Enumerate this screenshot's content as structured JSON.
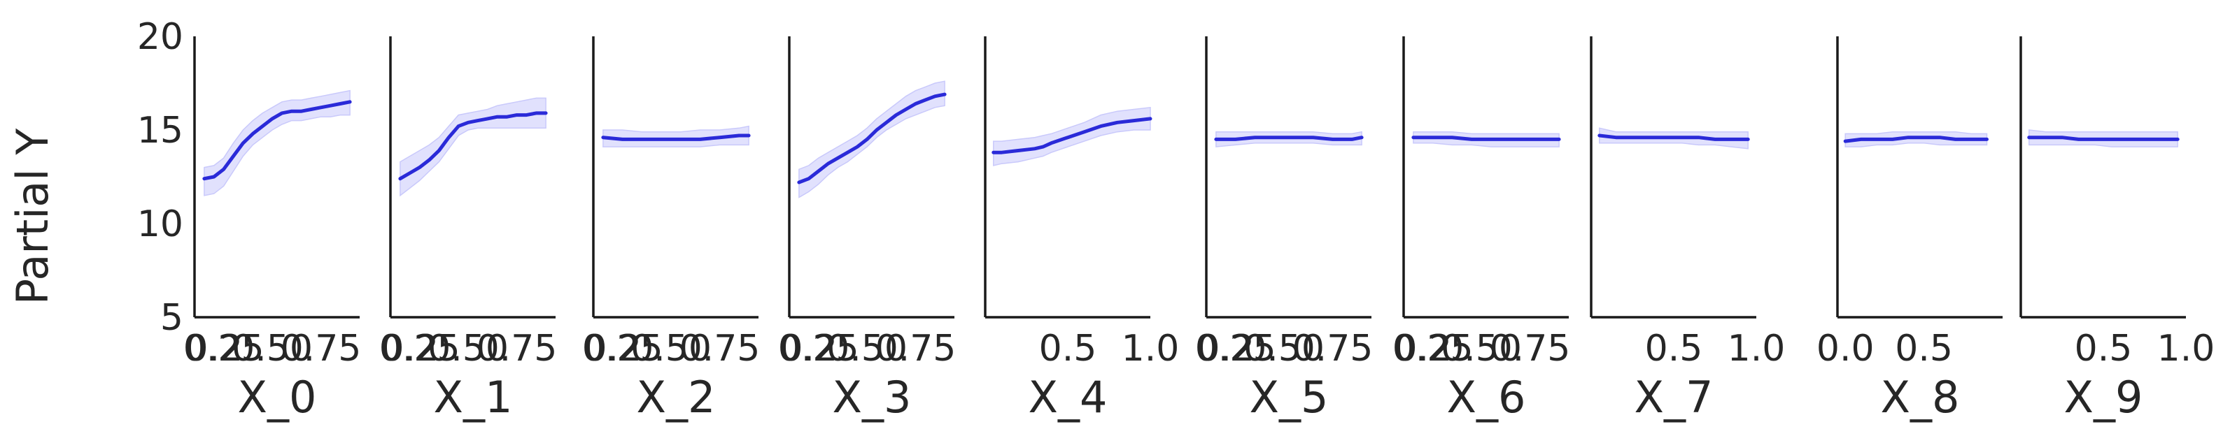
{
  "chart_data": {
    "type": "line",
    "ylabel": "Partial Y",
    "ylim": [
      5,
      20
    ],
    "yticks": [
      5,
      10,
      15,
      20
    ],
    "line_color": "#2a2ad8",
    "band_color": "#c9c9fb",
    "grid": false,
    "legend": "none",
    "panels": [
      {
        "xlabel": "X_0",
        "xlim": [
          0.1,
          0.95
        ],
        "xticks": [
          "0.25",
          "0.50",
          "0.75"
        ],
        "tick_values": [
          0.25,
          0.5,
          0.75
        ],
        "tick_min_label": "0.2",
        "x": [
          0.15,
          0.2,
          0.25,
          0.3,
          0.35,
          0.4,
          0.45,
          0.5,
          0.55,
          0.6,
          0.65,
          0.7,
          0.75,
          0.8,
          0.85,
          0.9
        ],
        "y": [
          12.4,
          12.5,
          12.9,
          13.6,
          14.3,
          14.8,
          15.2,
          15.6,
          15.9,
          16.0,
          16.0,
          16.1,
          16.2,
          16.3,
          16.4,
          16.5
        ],
        "lower": [
          11.5,
          11.6,
          12.0,
          12.8,
          13.6,
          14.2,
          14.6,
          15.0,
          15.3,
          15.5,
          15.5,
          15.6,
          15.7,
          15.7,
          15.8,
          15.8
        ],
        "upper": [
          13.0,
          13.1,
          13.5,
          14.3,
          15.0,
          15.5,
          15.9,
          16.2,
          16.5,
          16.6,
          16.6,
          16.7,
          16.8,
          16.9,
          17.0,
          17.1
        ]
      },
      {
        "xlabel": "X_1",
        "xlim": [
          0.1,
          0.95
        ],
        "xticks": [
          "0.25",
          "0.50",
          "0.75"
        ],
        "tick_values": [
          0.25,
          0.5,
          0.75
        ],
        "tick_min_label": "0.2",
        "x": [
          0.15,
          0.2,
          0.25,
          0.3,
          0.35,
          0.4,
          0.45,
          0.5,
          0.55,
          0.6,
          0.65,
          0.7,
          0.75,
          0.8,
          0.85,
          0.9
        ],
        "y": [
          12.4,
          12.7,
          13.0,
          13.4,
          13.9,
          14.6,
          15.2,
          15.4,
          15.5,
          15.6,
          15.7,
          15.7,
          15.8,
          15.8,
          15.9,
          15.9
        ],
        "lower": [
          11.5,
          11.9,
          12.3,
          12.8,
          13.3,
          14.0,
          14.7,
          15.0,
          15.1,
          15.1,
          15.1,
          15.1,
          15.1,
          15.1,
          15.1,
          15.1
        ],
        "upper": [
          13.3,
          13.6,
          13.9,
          14.2,
          14.6,
          15.2,
          15.8,
          15.9,
          16.0,
          16.1,
          16.3,
          16.4,
          16.5,
          16.6,
          16.7,
          16.7
        ]
      },
      {
        "xlabel": "X_2",
        "xlim": [
          0.1,
          0.95
        ],
        "xticks": [
          "0.25",
          "0.50",
          "0.75"
        ],
        "tick_values": [
          0.25,
          0.5,
          0.75
        ],
        "tick_min_label": "0.2",
        "x": [
          0.15,
          0.25,
          0.35,
          0.45,
          0.55,
          0.65,
          0.75,
          0.85,
          0.9
        ],
        "y": [
          14.6,
          14.5,
          14.5,
          14.5,
          14.5,
          14.5,
          14.6,
          14.7,
          14.7
        ],
        "lower": [
          14.1,
          14.1,
          14.1,
          14.1,
          14.1,
          14.1,
          14.2,
          14.2,
          14.2
        ],
        "upper": [
          15.0,
          15.0,
          14.9,
          14.9,
          14.9,
          15.0,
          15.0,
          15.1,
          15.2
        ]
      },
      {
        "xlabel": "X_3",
        "xlim": [
          0.1,
          0.95
        ],
        "xticks": [
          "0.25",
          "0.50",
          "0.75"
        ],
        "tick_values": [
          0.25,
          0.5,
          0.75
        ],
        "tick_min_label": "0.2",
        "x": [
          0.15,
          0.2,
          0.25,
          0.3,
          0.35,
          0.4,
          0.45,
          0.5,
          0.55,
          0.6,
          0.65,
          0.7,
          0.75,
          0.8,
          0.85,
          0.9
        ],
        "y": [
          12.2,
          12.4,
          12.8,
          13.2,
          13.5,
          13.8,
          14.1,
          14.5,
          15.0,
          15.4,
          15.8,
          16.1,
          16.4,
          16.6,
          16.8,
          16.9
        ],
        "lower": [
          11.4,
          11.7,
          12.1,
          12.6,
          13.0,
          13.3,
          13.7,
          14.1,
          14.6,
          15.0,
          15.3,
          15.6,
          15.8,
          16.0,
          16.2,
          16.3
        ],
        "upper": [
          12.9,
          13.1,
          13.5,
          13.8,
          14.1,
          14.4,
          14.7,
          15.1,
          15.6,
          16.0,
          16.4,
          16.8,
          17.1,
          17.3,
          17.5,
          17.6
        ]
      },
      {
        "xlabel": "X_4",
        "xlim": [
          0.0,
          1.0
        ],
        "xticks": [
          "0.5",
          "1.0"
        ],
        "tick_values": [
          0.5,
          1.0
        ],
        "x": [
          0.05,
          0.1,
          0.2,
          0.3,
          0.35,
          0.4,
          0.5,
          0.6,
          0.7,
          0.8,
          0.9,
          1.0
        ],
        "y": [
          13.8,
          13.8,
          13.9,
          14.0,
          14.1,
          14.3,
          14.6,
          14.9,
          15.2,
          15.4,
          15.5,
          15.6
        ],
        "lower": [
          13.1,
          13.2,
          13.3,
          13.5,
          13.6,
          13.8,
          14.1,
          14.4,
          14.7,
          14.9,
          15.0,
          15.0
        ],
        "upper": [
          14.4,
          14.4,
          14.5,
          14.6,
          14.7,
          14.8,
          15.1,
          15.4,
          15.8,
          16.0,
          16.1,
          16.2
        ]
      },
      {
        "xlabel": "X_5",
        "xlim": [
          0.1,
          0.95
        ],
        "xticks": [
          "0.25",
          "0.50",
          "0.75"
        ],
        "tick_values": [
          0.25,
          0.5,
          0.75
        ],
        "tick_min_label": "0.2",
        "x": [
          0.15,
          0.25,
          0.35,
          0.45,
          0.55,
          0.65,
          0.75,
          0.85,
          0.9
        ],
        "y": [
          14.5,
          14.5,
          14.6,
          14.6,
          14.6,
          14.6,
          14.5,
          14.5,
          14.6
        ],
        "lower": [
          14.1,
          14.2,
          14.3,
          14.3,
          14.3,
          14.3,
          14.2,
          14.2,
          14.2
        ],
        "upper": [
          14.9,
          14.9,
          14.9,
          14.9,
          14.9,
          14.9,
          14.8,
          14.8,
          14.9
        ]
      },
      {
        "xlabel": "X_6",
        "xlim": [
          0.1,
          0.95
        ],
        "xticks": [
          "0.25",
          "0.50",
          "0.75"
        ],
        "tick_values": [
          0.25,
          0.5,
          0.75
        ],
        "tick_min_label": "0.2",
        "x": [
          0.15,
          0.25,
          0.35,
          0.45,
          0.55,
          0.65,
          0.75,
          0.85,
          0.9
        ],
        "y": [
          14.6,
          14.6,
          14.6,
          14.5,
          14.5,
          14.5,
          14.5,
          14.5,
          14.5
        ],
        "lower": [
          14.3,
          14.3,
          14.2,
          14.2,
          14.1,
          14.1,
          14.1,
          14.1,
          14.1
        ],
        "upper": [
          14.9,
          14.9,
          14.9,
          14.8,
          14.8,
          14.8,
          14.8,
          14.8,
          14.8
        ]
      },
      {
        "xlabel": "X_7",
        "xlim": [
          0.0,
          1.0
        ],
        "xticks": [
          "0.5",
          "1.0"
        ],
        "tick_values": [
          0.5,
          1.0
        ],
        "x": [
          0.05,
          0.15,
          0.25,
          0.35,
          0.45,
          0.55,
          0.65,
          0.75,
          0.85,
          0.95
        ],
        "y": [
          14.7,
          14.6,
          14.6,
          14.6,
          14.6,
          14.6,
          14.6,
          14.5,
          14.5,
          14.5
        ],
        "lower": [
          14.3,
          14.3,
          14.3,
          14.3,
          14.3,
          14.3,
          14.2,
          14.2,
          14.1,
          14.0
        ],
        "upper": [
          15.1,
          14.9,
          14.9,
          14.9,
          14.9,
          14.9,
          14.9,
          14.9,
          14.9,
          14.9
        ]
      },
      {
        "xlabel": "X_8",
        "xlim": [
          -0.05,
          1.0
        ],
        "xticks": [
          "0.0",
          "0.5"
        ],
        "tick_values": [
          0.0,
          0.5
        ],
        "x": [
          0.0,
          0.1,
          0.2,
          0.3,
          0.4,
          0.5,
          0.6,
          0.7,
          0.8,
          0.9
        ],
        "y": [
          14.4,
          14.5,
          14.5,
          14.5,
          14.6,
          14.6,
          14.6,
          14.5,
          14.5,
          14.5
        ],
        "lower": [
          14.1,
          14.1,
          14.2,
          14.2,
          14.3,
          14.3,
          14.2,
          14.2,
          14.2,
          14.2
        ],
        "upper": [
          14.8,
          14.8,
          14.8,
          14.9,
          14.9,
          14.9,
          14.9,
          14.9,
          14.8,
          14.8
        ]
      },
      {
        "xlabel": "X_9",
        "xlim": [
          0.0,
          1.0
        ],
        "xticks": [
          "0.5",
          "1.0"
        ],
        "tick_values": [
          0.5,
          1.0
        ],
        "x": [
          0.05,
          0.15,
          0.25,
          0.35,
          0.45,
          0.55,
          0.65,
          0.75,
          0.85,
          0.95
        ],
        "y": [
          14.6,
          14.6,
          14.6,
          14.5,
          14.5,
          14.5,
          14.5,
          14.5,
          14.5,
          14.5
        ],
        "lower": [
          14.2,
          14.2,
          14.2,
          14.2,
          14.2,
          14.1,
          14.1,
          14.1,
          14.1,
          14.1
        ],
        "upper": [
          15.0,
          14.9,
          14.9,
          14.9,
          14.9,
          14.9,
          14.9,
          14.9,
          14.9,
          14.9
        ]
      }
    ]
  }
}
